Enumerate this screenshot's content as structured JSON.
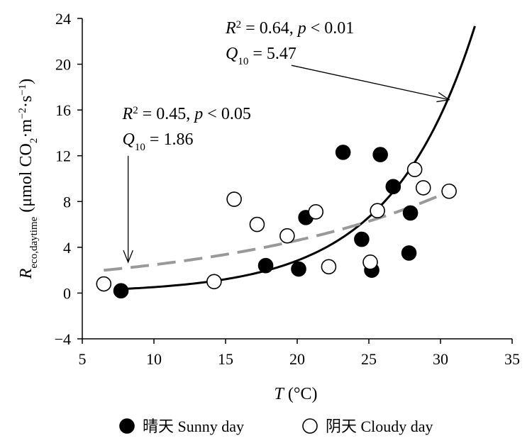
{
  "chart_data": {
    "type": "scatter",
    "xlabel": {
      "var": "T",
      "unit": " (°C)"
    },
    "ylabel": {
      "var": "R",
      "sub": "eco,daytime",
      "unit_a": " (μmol CO",
      "unit_b": "2",
      "unit_c": "·m",
      "unit_d": "−2",
      "unit_e": "·s",
      "unit_f": "−1",
      "unit_g": ")"
    },
    "xlim": [
      5,
      35
    ],
    "ylim": [
      -4,
      24
    ],
    "xticks": [
      "5",
      "10",
      "15",
      "20",
      "25",
      "30",
      "35"
    ],
    "yticks": [
      "−4",
      "0",
      "4",
      "8",
      "12",
      "16",
      "20",
      "24"
    ],
    "grid": false,
    "legend_position": "bottom",
    "series": [
      {
        "name": "晴天 Sunny day",
        "marker": "filled-circle",
        "color": "#000000",
        "points": [
          {
            "x": 7.7,
            "y": 0.2
          },
          {
            "x": 17.8,
            "y": 2.4
          },
          {
            "x": 20.1,
            "y": 2.1
          },
          {
            "x": 20.6,
            "y": 6.6
          },
          {
            "x": 23.2,
            "y": 12.3
          },
          {
            "x": 24.5,
            "y": 4.7
          },
          {
            "x": 25.2,
            "y": 2.0
          },
          {
            "x": 25.8,
            "y": 12.1
          },
          {
            "x": 26.7,
            "y": 9.3
          },
          {
            "x": 27.8,
            "y": 3.5
          },
          {
            "x": 27.9,
            "y": 7.0
          }
        ]
      },
      {
        "name": "阴天 Cloudy day",
        "marker": "open-circle",
        "color": "#000000",
        "points": [
          {
            "x": 6.5,
            "y": 0.8
          },
          {
            "x": 14.2,
            "y": 1.0
          },
          {
            "x": 15.6,
            "y": 8.2
          },
          {
            "x": 17.2,
            "y": 6.0
          },
          {
            "x": 19.3,
            "y": 5.0
          },
          {
            "x": 21.3,
            "y": 7.1
          },
          {
            "x": 22.2,
            "y": 2.3
          },
          {
            "x": 25.1,
            "y": 2.7
          },
          {
            "x": 25.6,
            "y": 7.2
          },
          {
            "x": 28.2,
            "y": 10.8
          },
          {
            "x": 28.8,
            "y": 9.2
          },
          {
            "x": 30.6,
            "y": 8.9
          }
        ]
      }
    ],
    "fits": [
      {
        "series": "晴天 Sunny day",
        "style": "solid",
        "color": "#000000",
        "a": 0.0948,
        "q10": 5.47,
        "x_range": [
          7.7,
          32.4
        ]
      },
      {
        "series": "阴天 Cloudy day",
        "style": "dashed",
        "color": "#999999",
        "a": 1.33,
        "q10": 1.86,
        "x_range": [
          6.5,
          30.6
        ]
      }
    ],
    "annotations": [
      {
        "r2": "0.64",
        "p": "0.01",
        "q10": "5.47",
        "text_x": 15.0,
        "text_y": 22.7,
        "arrow_from": [
          19.6,
          19.9
        ],
        "arrow_to": [
          30.6,
          16.9
        ]
      },
      {
        "r2": "0.45",
        "p": "0.05",
        "q10": "1.86",
        "text_x": 7.8,
        "text_y": 15.2,
        "arrow_from": [
          8.2,
          12.0
        ],
        "arrow_to": [
          8.2,
          2.7
        ]
      }
    ]
  }
}
